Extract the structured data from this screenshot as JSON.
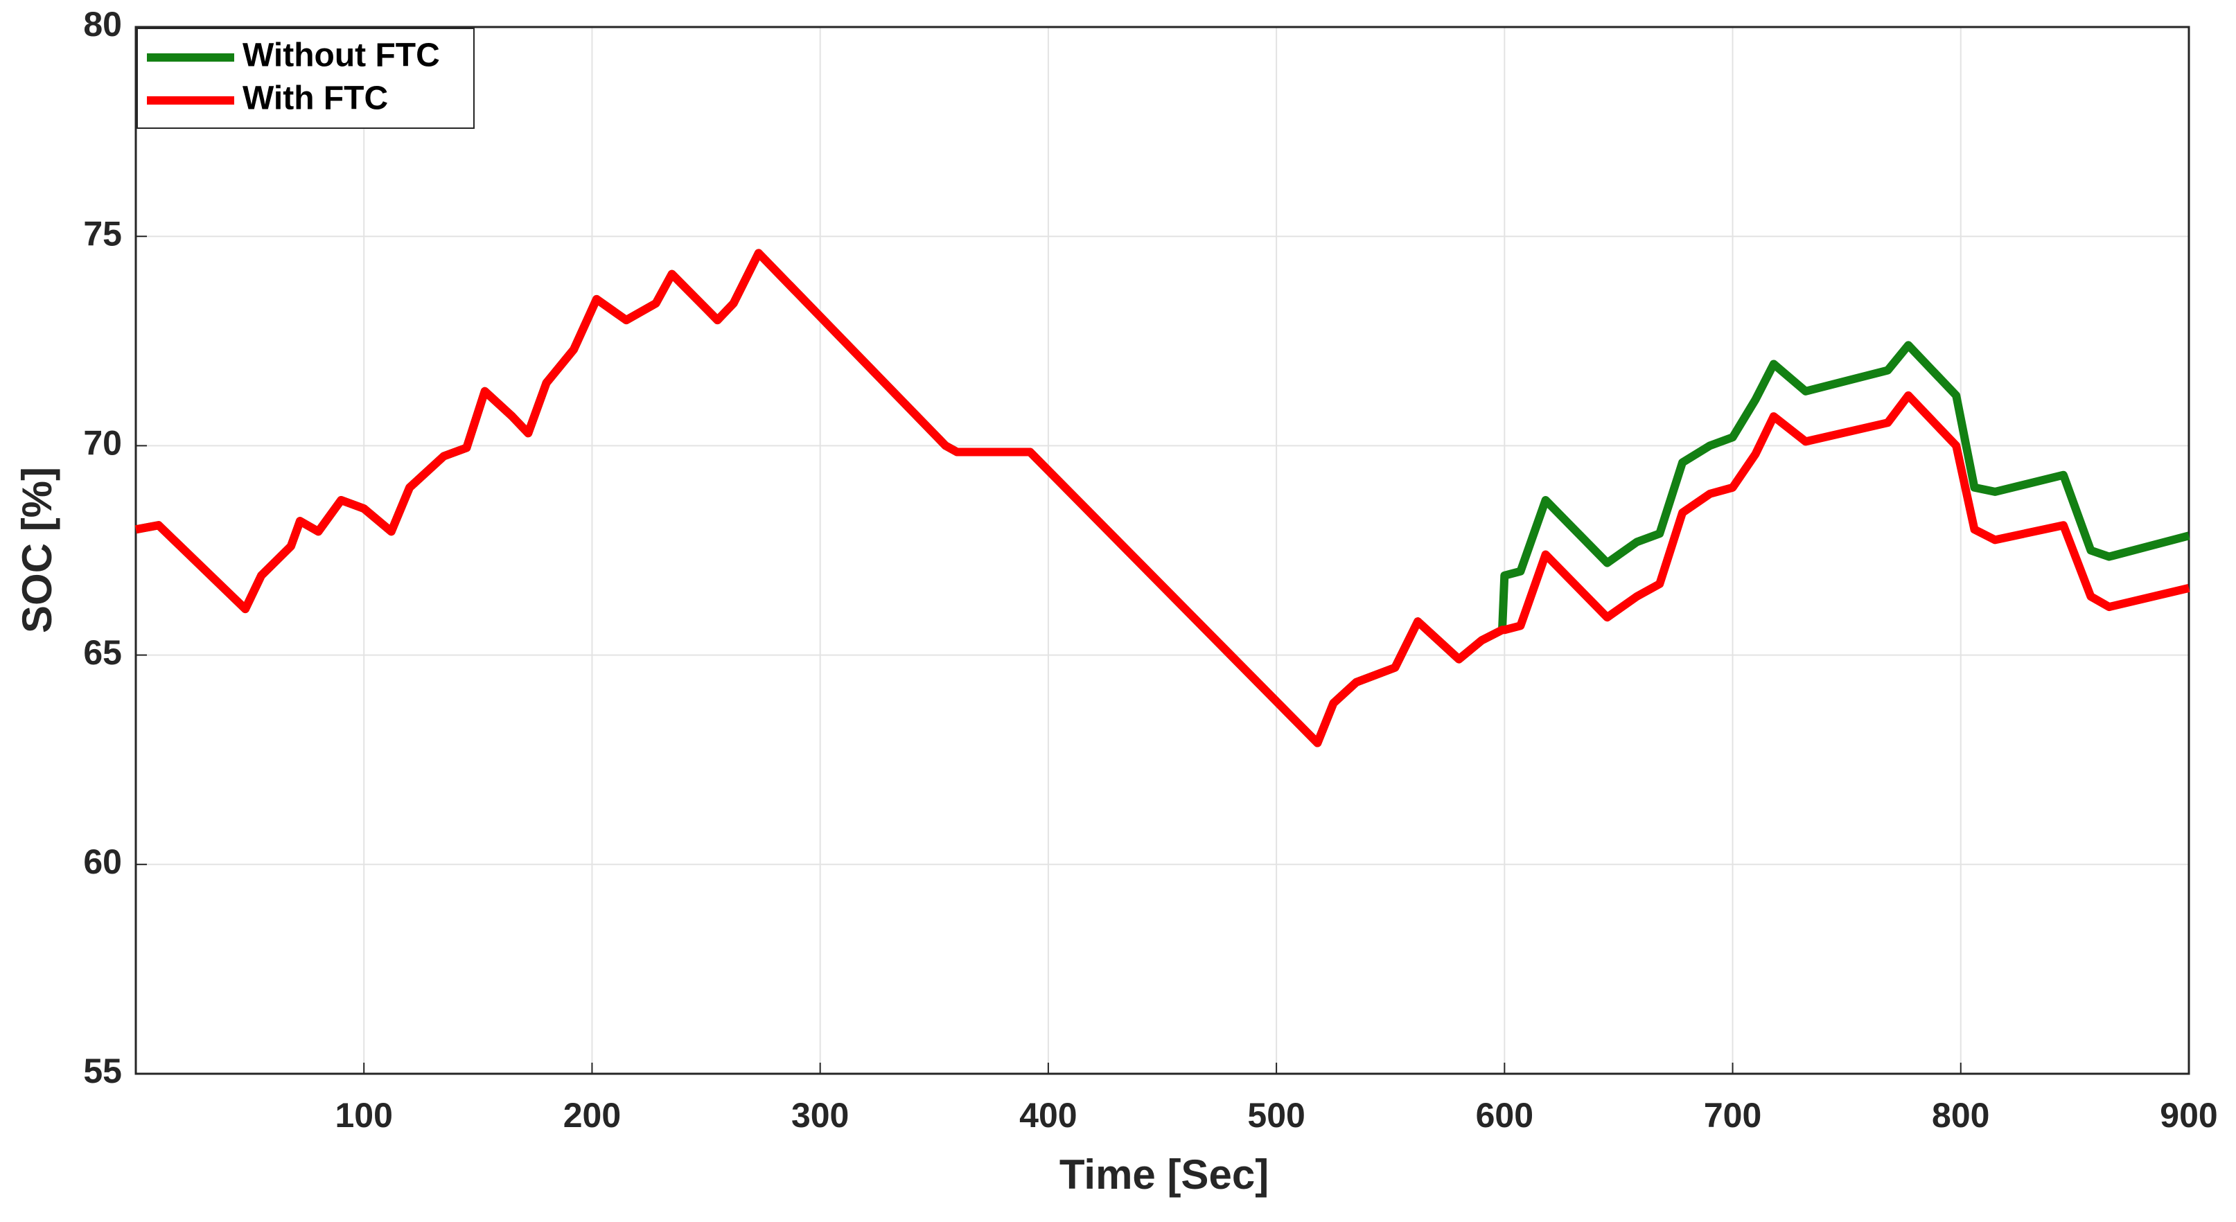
{
  "chart_data": {
    "type": "line",
    "xlabel": "Time [Sec]",
    "ylabel": "SOC [%]",
    "x": [
      0,
      10,
      48,
      55,
      68,
      72,
      80,
      90,
      100,
      112,
      120,
      135,
      145,
      153,
      165,
      172,
      180,
      192,
      202,
      215,
      228,
      235,
      255,
      262,
      273,
      355,
      360,
      385,
      392,
      518,
      525,
      535,
      552,
      562,
      580,
      590,
      599,
      600,
      607,
      618,
      645,
      658,
      668,
      678,
      690,
      700,
      710,
      718,
      732,
      768,
      777,
      798,
      806,
      815,
      845,
      857,
      865,
      900
    ],
    "series": [
      {
        "name": "Without FTC",
        "color": "#138013",
        "values": [
          68.0,
          68.1,
          66.1,
          66.9,
          67.6,
          68.2,
          67.95,
          68.7,
          68.5,
          67.95,
          69.0,
          69.75,
          69.95,
          71.3,
          70.7,
          70.3,
          71.5,
          72.3,
          73.5,
          73.0,
          73.4,
          74.1,
          73.0,
          73.4,
          74.6,
          70.0,
          69.85,
          69.85,
          69.85,
          62.9,
          63.85,
          64.35,
          64.7,
          65.8,
          64.9,
          65.35,
          65.6,
          66.9,
          67.0,
          68.7,
          67.2,
          67.7,
          67.9,
          69.6,
          70.0,
          70.2,
          71.1,
          71.95,
          71.3,
          71.8,
          72.4,
          71.2,
          69.0,
          68.9,
          69.3,
          67.5,
          67.35,
          67.85
        ]
      },
      {
        "name": "With FTC",
        "color": "#ff0000",
        "values": [
          68.0,
          68.1,
          66.1,
          66.9,
          67.6,
          68.2,
          67.95,
          68.7,
          68.5,
          67.95,
          69.0,
          69.75,
          69.95,
          71.3,
          70.7,
          70.3,
          71.5,
          72.3,
          73.5,
          73.0,
          73.4,
          74.1,
          73.0,
          73.4,
          74.6,
          70.0,
          69.85,
          69.85,
          69.85,
          62.9,
          63.85,
          64.35,
          64.7,
          65.8,
          64.9,
          65.35,
          65.6,
          65.6,
          65.7,
          67.4,
          65.9,
          66.4,
          66.7,
          68.4,
          68.85,
          69.0,
          69.8,
          70.7,
          70.1,
          70.55,
          71.2,
          70.0,
          68.0,
          67.75,
          68.1,
          66.4,
          66.15,
          66.6
        ]
      }
    ],
    "xlim": [
      0,
      900
    ],
    "xticks": [
      100,
      200,
      300,
      400,
      500,
      600,
      700,
      800,
      900
    ],
    "ylim": [
      55,
      80
    ],
    "yticks": [
      55,
      60,
      65,
      70,
      75,
      80
    ],
    "grid": true,
    "legend": "upper left"
  }
}
